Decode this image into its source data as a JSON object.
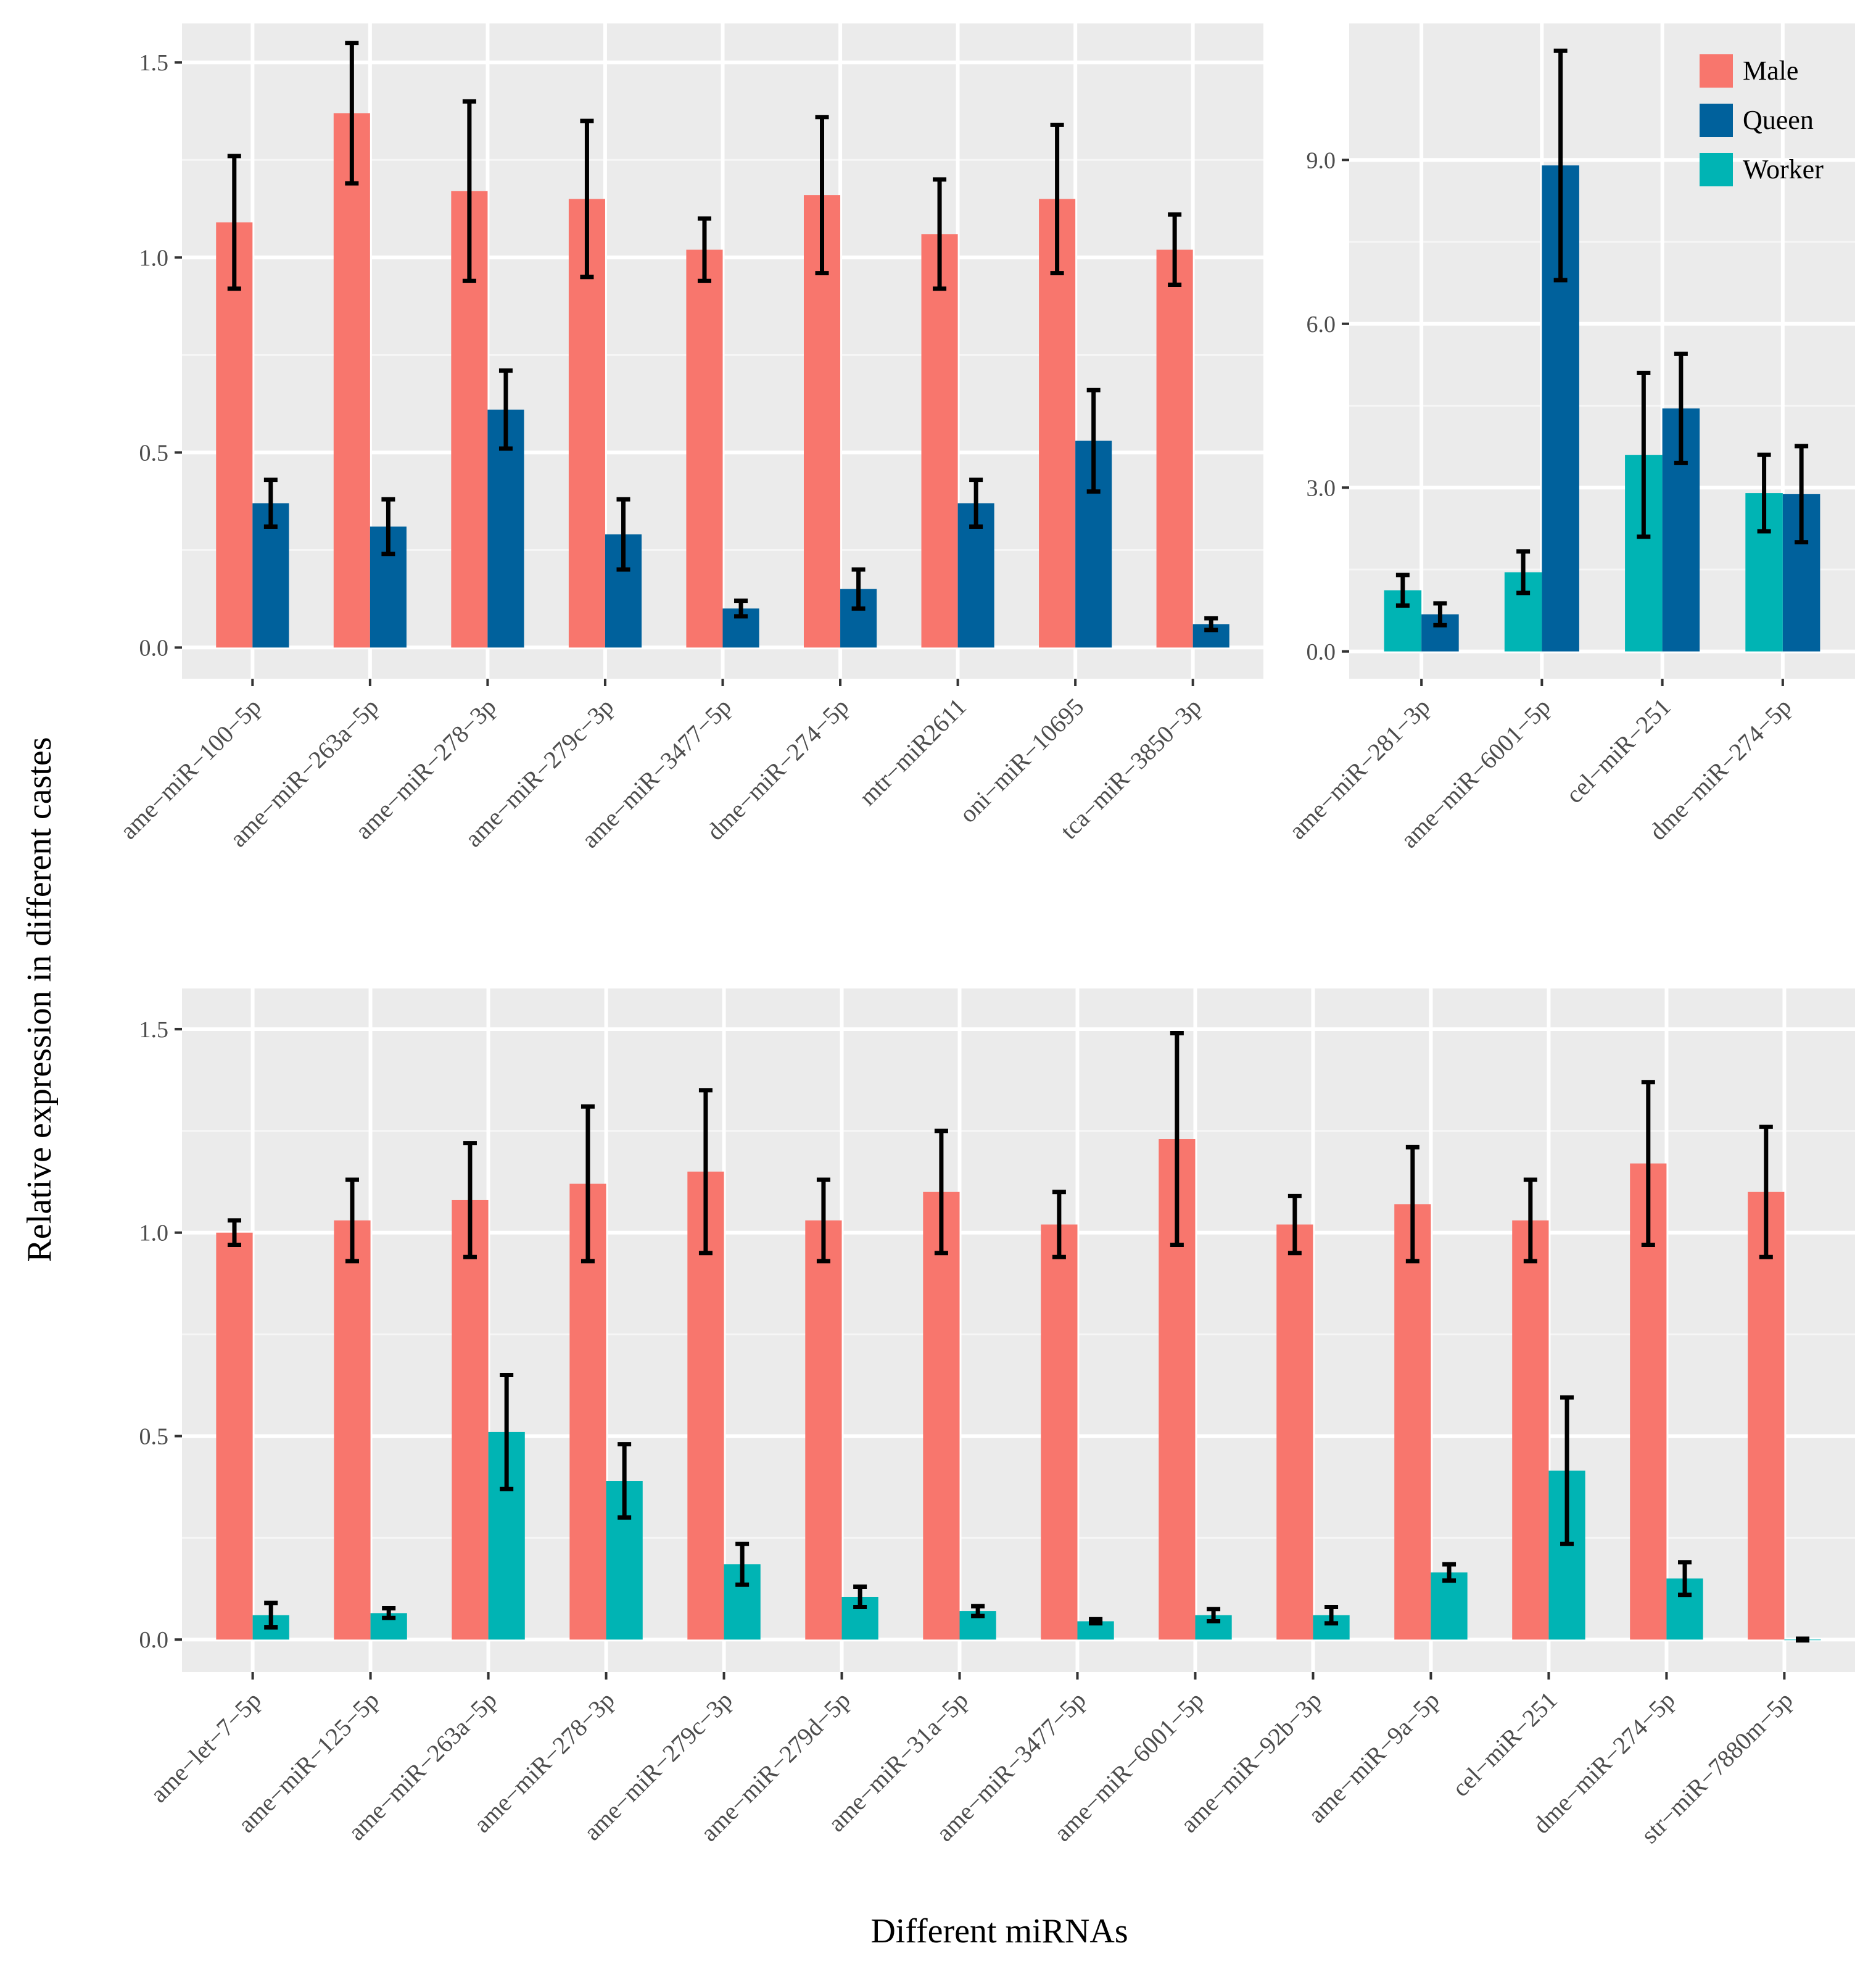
{
  "figure": {
    "ylabel": "Relative expression in different castes",
    "xlabel": "Different miRNAs"
  },
  "colors": {
    "Male": "#F8766D",
    "Queen": "#00619C",
    "Worker": "#00B4B4"
  },
  "legend": {
    "entries": [
      "Male",
      "Queen",
      "Worker"
    ],
    "position": "top-right of panel 2"
  },
  "chart_data": [
    {
      "type": "bar",
      "panel": "top-left",
      "categories": [
        "ame−miR−100−5p",
        "ame−miR−263a−5p",
        "ame−miR−278−3p",
        "ame−miR−279c−3p",
        "ame−miR−3477−5p",
        "dme−miR−274−5p",
        "mtr−miR2611",
        "oni−miR−10695",
        "tca−miR−3850−3p"
      ],
      "series": [
        {
          "name": "Male",
          "values": [
            1.09,
            1.37,
            1.17,
            1.15,
            1.02,
            1.16,
            1.06,
            1.15,
            1.02
          ],
          "errors": [
            0.17,
            0.18,
            0.23,
            0.2,
            0.08,
            0.2,
            0.14,
            0.19,
            0.09
          ]
        },
        {
          "name": "Queen",
          "values": [
            0.37,
            0.31,
            0.61,
            0.29,
            0.1,
            0.15,
            0.37,
            0.53,
            0.06
          ],
          "errors": [
            0.06,
            0.07,
            0.1,
            0.09,
            0.02,
            0.05,
            0.06,
            0.13,
            0.015
          ]
        }
      ],
      "ylim": [
        -0.08,
        1.6
      ],
      "yticks": [
        0.0,
        0.5,
        1.0,
        1.5
      ],
      "ytick_labels": [
        "0.0",
        "0.5",
        "1.0",
        "1.5"
      ],
      "grid": true
    },
    {
      "type": "bar",
      "panel": "top-right",
      "categories": [
        "ame−miR−281−3p",
        "ame−miR−6001−5p",
        "cel−miR−251",
        "dme−miR−274−5p"
      ],
      "series": [
        {
          "name": "Worker",
          "values": [
            1.12,
            1.45,
            3.6,
            2.9
          ],
          "errors": [
            0.28,
            0.38,
            1.5,
            0.7
          ]
        },
        {
          "name": "Queen",
          "values": [
            0.68,
            8.9,
            4.45,
            2.88
          ],
          "errors": [
            0.2,
            2.1,
            1.0,
            0.88
          ]
        }
      ],
      "ylim": [
        -0.5,
        11.5
      ],
      "yticks": [
        0.0,
        3.0,
        6.0,
        9.0
      ],
      "ytick_labels": [
        "0.0",
        "3.0",
        "6.0",
        "9.0"
      ],
      "grid": true
    },
    {
      "type": "bar",
      "panel": "bottom",
      "categories": [
        "ame−let−7−5p",
        "ame−miR−125−5p",
        "ame−miR−263a−5p",
        "ame−miR−278−3p",
        "ame−miR−279c−3p",
        "ame−miR−279d−5p",
        "ame−miR−31a−5p",
        "ame−miR−3477−5p",
        "ame−miR−6001−5p",
        "ame−miR−92b−3p",
        "ame−miR−9a−5p",
        "cel−miR−251",
        "dme−miR−274−5p",
        "str−miR−7880m−5p"
      ],
      "series": [
        {
          "name": "Male",
          "values": [
            1.0,
            1.03,
            1.08,
            1.12,
            1.15,
            1.03,
            1.1,
            1.02,
            1.23,
            1.02,
            1.07,
            1.03,
            1.17,
            1.1
          ],
          "errors": [
            0.03,
            0.1,
            0.14,
            0.19,
            0.2,
            0.1,
            0.15,
            0.08,
            0.26,
            0.07,
            0.14,
            0.1,
            0.2,
            0.16
          ]
        },
        {
          "name": "Worker",
          "values": [
            0.06,
            0.065,
            0.51,
            0.39,
            0.185,
            0.105,
            0.07,
            0.045,
            0.06,
            0.06,
            0.165,
            0.415,
            0.15,
            0.0
          ],
          "errors": [
            0.03,
            0.012,
            0.14,
            0.09,
            0.05,
            0.025,
            0.012,
            0.005,
            0.015,
            0.02,
            0.02,
            0.18,
            0.04,
            0.002
          ]
        }
      ],
      "ylim": [
        -0.08,
        1.6
      ],
      "yticks": [
        0.0,
        0.5,
        1.0,
        1.5
      ],
      "ytick_labels": [
        "0.0",
        "0.5",
        "1.0",
        "1.5"
      ],
      "grid": true
    }
  ]
}
